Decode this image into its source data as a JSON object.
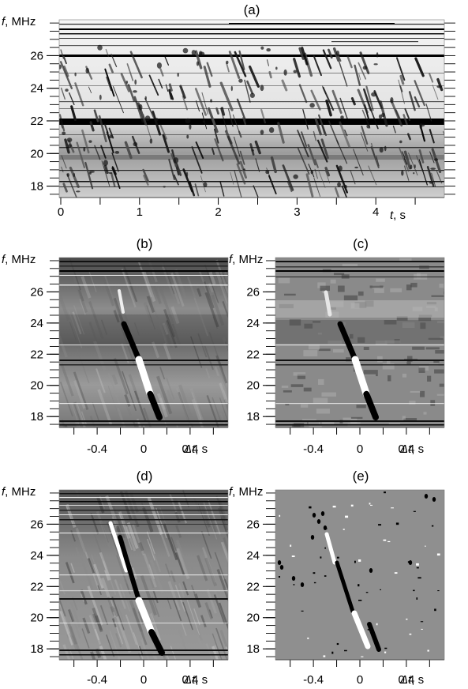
{
  "figure": {
    "panels": [
      {
        "id": "a",
        "label": "(a)",
        "ylabel": "f, MHz",
        "xlabel": "t, s",
        "xlabel_var": "t",
        "xlabel_unit": ", s",
        "x_ticks": [
          "0",
          "1",
          "2",
          "3",
          "4"
        ],
        "y_ticks": [
          "26",
          "24",
          "22",
          "20",
          "18"
        ],
        "xlim": [
          0,
          4.85
        ],
        "ylim": [
          17.3,
          28.2
        ],
        "style": "dynamic spectrum"
      },
      {
        "id": "b",
        "label": "(b)",
        "ylabel": "f, MHz",
        "xlabel": "Δt, s",
        "xlabel_var": "Δt",
        "xlabel_unit": ", s",
        "x_ticks": [
          "-0.4",
          "0",
          "0.4"
        ],
        "y_ticks": [
          "26",
          "24",
          "22",
          "20",
          "18"
        ],
        "xlim": [
          -0.72,
          0.72
        ],
        "ylim": [
          17.3,
          28.2
        ],
        "style": "averaged burst"
      },
      {
        "id": "c",
        "label": "(c)",
        "ylabel": "f, MHz",
        "xlabel": "Δt, s",
        "xlabel_var": "Δt",
        "xlabel_unit": ", s",
        "x_ticks": [
          "-0.4",
          "0",
          "0.4"
        ],
        "y_ticks": [
          "26",
          "24",
          "22",
          "20",
          "18"
        ],
        "xlim": [
          -0.72,
          0.72
        ],
        "ylim": [
          17.3,
          28.2
        ],
        "style": "thresholded burst"
      },
      {
        "id": "d",
        "label": "(d)",
        "ylabel": "f, MHz",
        "xlabel": "Δt, s",
        "xlabel_var": "Δt",
        "xlabel_unit": ", s",
        "x_ticks": [
          "-0.4",
          "0",
          "0.4"
        ],
        "y_ticks": [
          "26",
          "24",
          "22",
          "20",
          "18"
        ],
        "xlim": [
          -0.72,
          0.72
        ],
        "ylim": [
          17.3,
          28.2
        ],
        "style": "filtered burst"
      },
      {
        "id": "e",
        "label": "(e)",
        "ylabel": "f, MHz",
        "xlabel": "Δt, s",
        "xlabel_var": "Δt",
        "xlabel_unit": ", s",
        "x_ticks": [
          "-0.4",
          "0",
          "0.4"
        ],
        "y_ticks": [
          "26",
          "24",
          "22",
          "20",
          "18"
        ],
        "xlim": [
          -0.72,
          0.72
        ],
        "ylim": [
          17.3,
          28.2
        ],
        "style": "binary burst"
      }
    ]
  }
}
